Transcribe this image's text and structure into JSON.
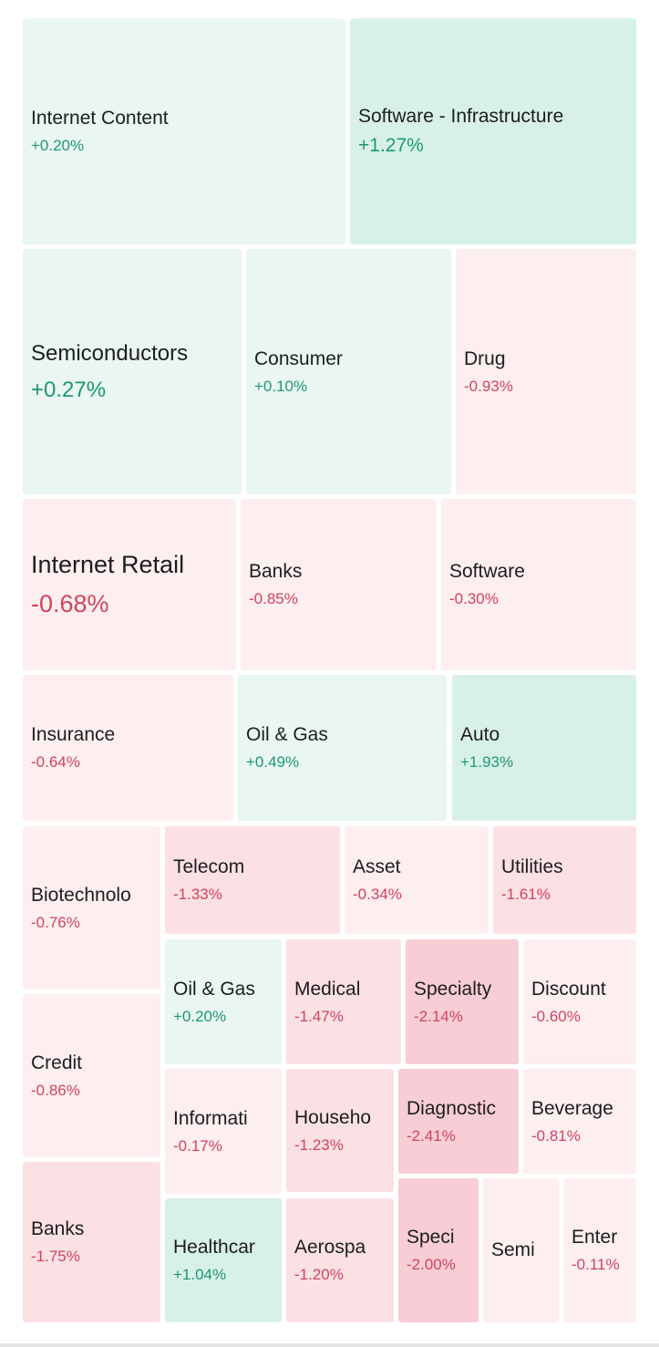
{
  "palette": {
    "pos_strong": "#d8f1e8",
    "pos_light": "#e9f6f1",
    "neg_light": "#fdeeef",
    "neg_mid": "#fbe0e4",
    "neg_strong": "#f8cdd5",
    "pos_text": "#1e9a6a",
    "neg_text": "#d0445d"
  },
  "heatmap": {
    "tiles": [
      {
        "name": "Internet Content",
        "change": "+0.20%"
      },
      {
        "name": "Software - Infrastructure",
        "change": "+1.27%"
      },
      {
        "name": "Semiconductors",
        "change": "+0.27%"
      },
      {
        "name": "Consumer",
        "change": "+0.10%"
      },
      {
        "name": "Drug",
        "change": "-0.93%"
      },
      {
        "name": "Internet Retail",
        "change": "-0.68%"
      },
      {
        "name": "Banks",
        "change": "-0.85%"
      },
      {
        "name": "Software",
        "change": "-0.30%"
      },
      {
        "name": "Insurance",
        "change": "-0.64%"
      },
      {
        "name": "Oil & Gas",
        "change": "+0.49%"
      },
      {
        "name": "Auto",
        "change": "+1.93%"
      },
      {
        "name": "Biotechnolo",
        "change": "-0.76%"
      },
      {
        "name": "Telecom",
        "change": "-1.33%"
      },
      {
        "name": "Asset",
        "change": "-0.34%"
      },
      {
        "name": "Utilities",
        "change": "-1.61%"
      },
      {
        "name": "Credit",
        "change": "-0.86%"
      },
      {
        "name": "Oil & Gas",
        "change": "+0.20%"
      },
      {
        "name": "Medical",
        "change": "-1.47%"
      },
      {
        "name": "Specialty",
        "change": "-2.14%"
      },
      {
        "name": "Discount",
        "change": "-0.60%"
      },
      {
        "name": "Informati",
        "change": "-0.17%"
      },
      {
        "name": "Househo",
        "change": "-1.23%"
      },
      {
        "name": "Diagnostic",
        "change": "-2.41%"
      },
      {
        "name": "Beverage",
        "change": "-0.81%"
      },
      {
        "name": "Banks",
        "change": "-1.75%"
      },
      {
        "name": "Healthcar",
        "change": "+1.04%"
      },
      {
        "name": "Aerospa",
        "change": "-1.20%"
      },
      {
        "name": "Speci",
        "change": "-2.00%"
      },
      {
        "name": "Semi",
        "change": ""
      },
      {
        "name": "Enter",
        "change": "-0.11%"
      }
    ]
  }
}
